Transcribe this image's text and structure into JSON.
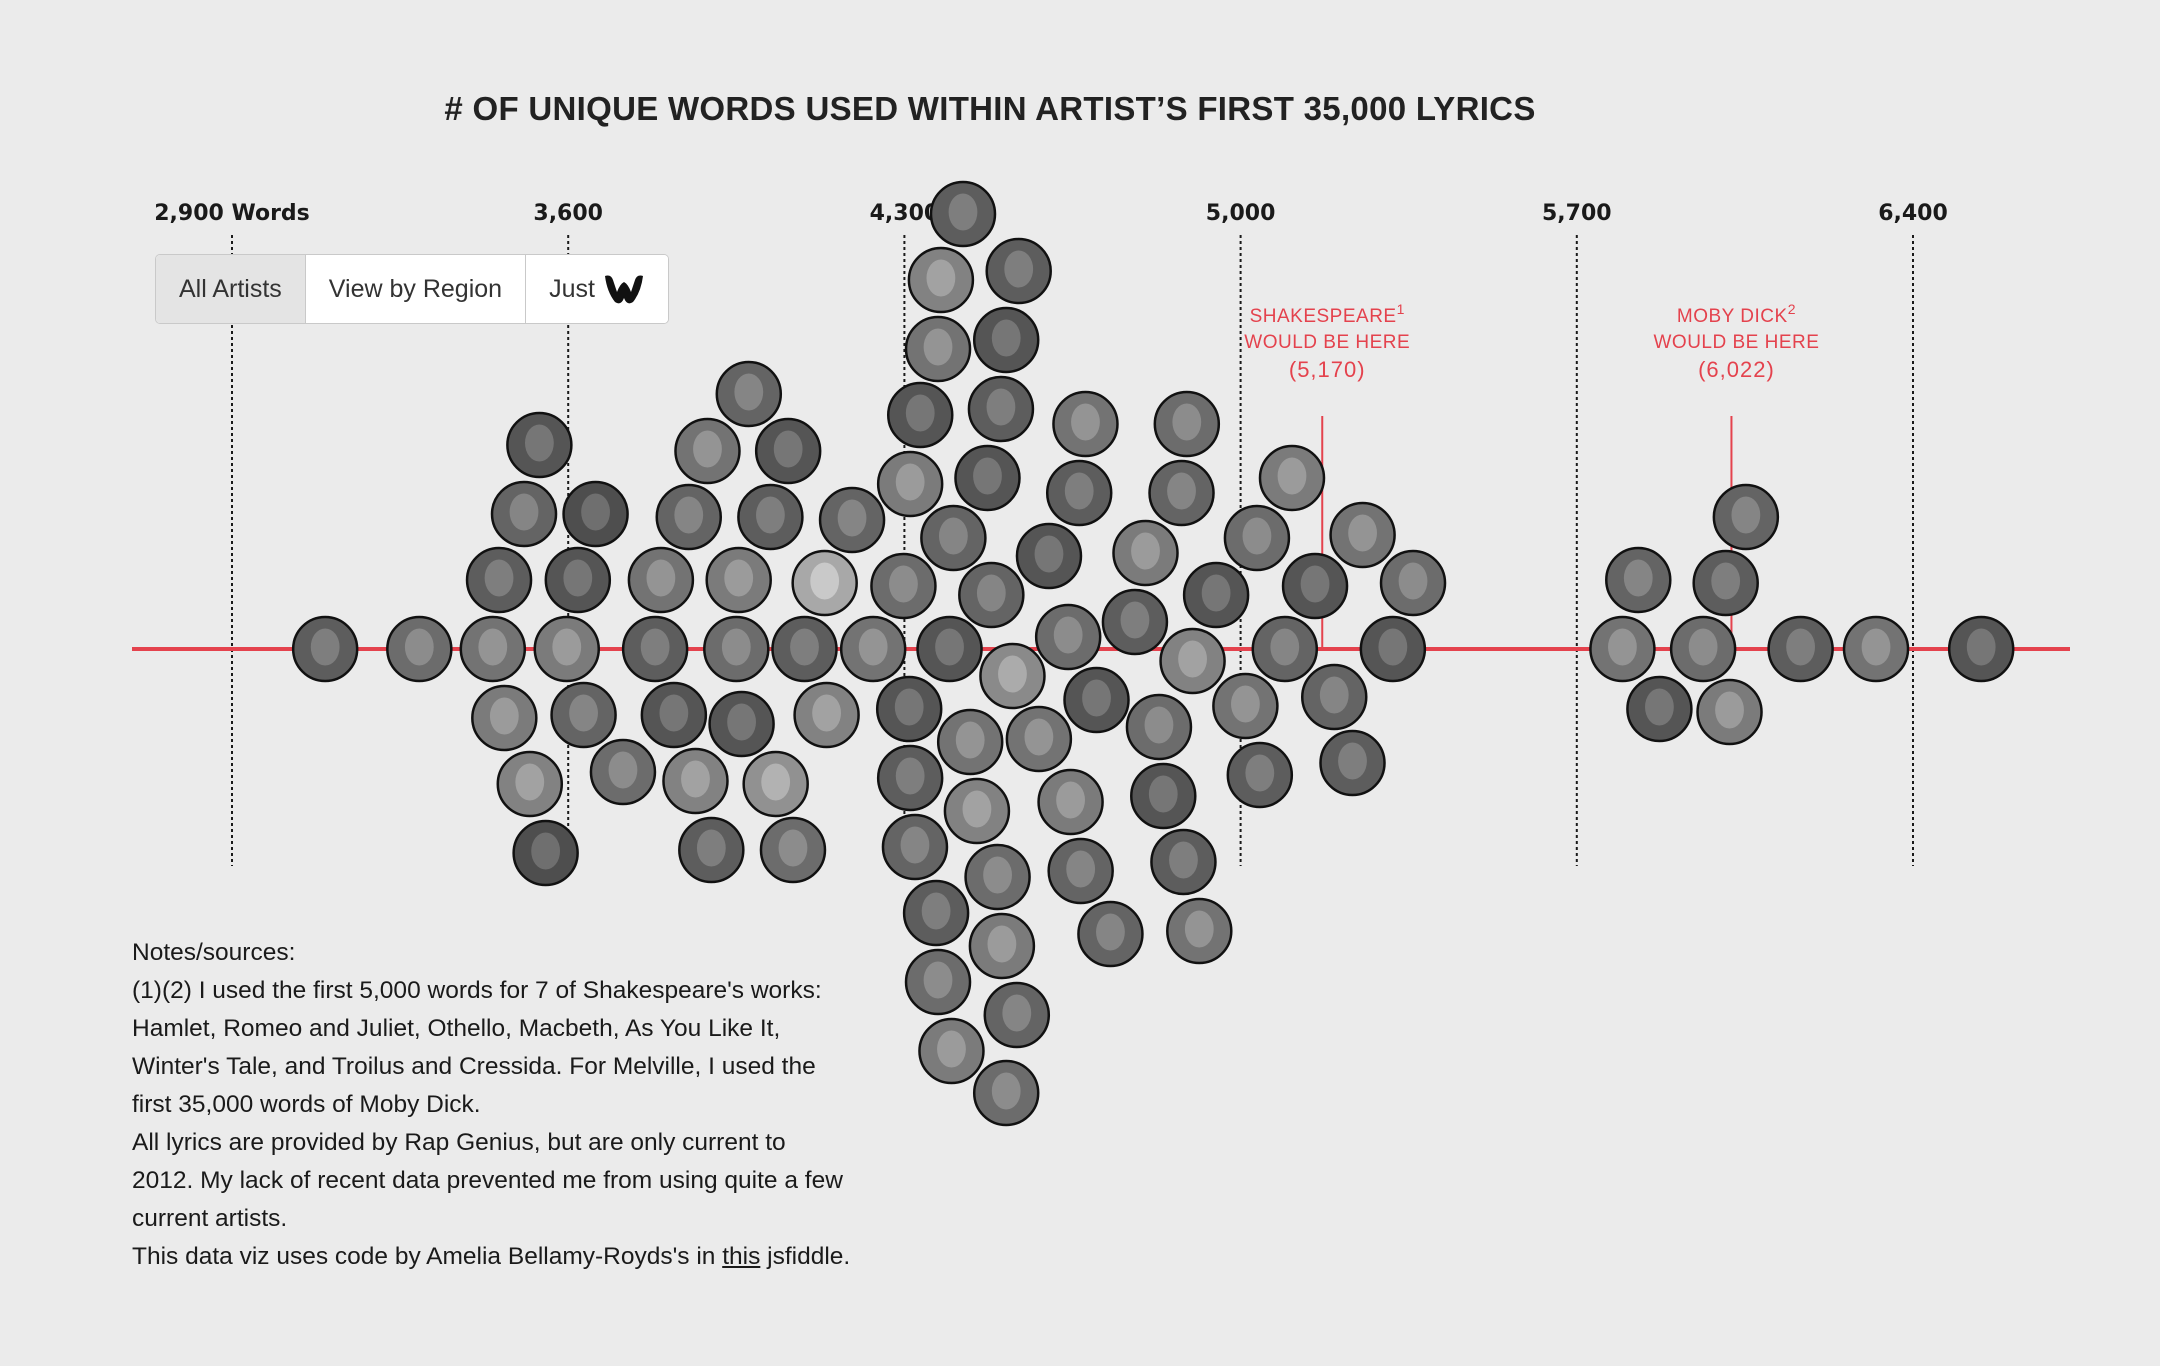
{
  "title": "# OF UNIQUE WORDS USED WITHIN ARTIST’S FIRST 35,000 LYRICS",
  "filters": {
    "all_artists": "All Artists",
    "by_region": "View by Region",
    "just": "Just",
    "wu_icon": "wu-tang-logo-icon"
  },
  "chart_data": {
    "type": "scatter",
    "x_axis": {
      "ticks": [
        2900,
        3600,
        4300,
        5000,
        5700,
        6400
      ],
      "tick_labels": [
        "2,900 Words",
        "3,600",
        "4,300",
        "5,000",
        "5,700",
        "6,400"
      ],
      "range": [
        2560,
        6840
      ]
    },
    "grid": true,
    "colors": {
      "baseline": "#e4424d",
      "annotation": "#e4424d",
      "grid": "#1a1a1a"
    },
    "annotations": [
      {
        "label_top": "SHAKESPEARE",
        "sup": "1",
        "label_bottom": "WOULD BE HERE",
        "value_text": "(5,170)",
        "x": 5170
      },
      {
        "label_top": "MOBY DICK",
        "sup": "2",
        "label_bottom": "WOULD BE HERE",
        "value_text": "(6,022)",
        "x": 6022
      }
    ],
    "points": [
      {
        "x": 3094,
        "tone": 0.35
      },
      {
        "x": 3290,
        "tone": 0.45
      },
      {
        "x": 3467,
        "tone": 0.55
      },
      {
        "x": 3553,
        "tone": 0.25
      },
      {
        "x": 3508,
        "tone": 0.4
      },
      {
        "x": 3520,
        "tone": 0.6
      },
      {
        "x": 3540,
        "tone": 0.3
      },
      {
        "x": 3443,
        "tone": 0.5
      },
      {
        "x": 3456,
        "tone": 0.35
      },
      {
        "x": 3632,
        "tone": 0.4
      },
      {
        "x": 3620,
        "tone": 0.3
      },
      {
        "x": 3597,
        "tone": 0.55
      },
      {
        "x": 3657,
        "tone": 0.25
      },
      {
        "x": 3714,
        "tone": 0.45
      },
      {
        "x": 3781,
        "tone": 0.35
      },
      {
        "x": 3793,
        "tone": 0.5
      },
      {
        "x": 3820,
        "tone": 0.3
      },
      {
        "x": 3851,
        "tone": 0.4
      },
      {
        "x": 3865,
        "tone": 0.6
      },
      {
        "x": 3898,
        "tone": 0.35
      },
      {
        "x": 3890,
        "tone": 0.5
      },
      {
        "x": 3961,
        "tone": 0.3
      },
      {
        "x": 3950,
        "tone": 0.45
      },
      {
        "x": 3955,
        "tone": 0.55
      },
      {
        "x": 3976,
        "tone": 0.4
      },
      {
        "x": 4021,
        "tone": 0.35
      },
      {
        "x": 4032,
        "tone": 0.7
      },
      {
        "x": 4058,
        "tone": 0.3
      },
      {
        "x": 4068,
        "tone": 0.45
      },
      {
        "x": 4092,
        "tone": 0.35
      },
      {
        "x": 4138,
        "tone": 0.6
      },
      {
        "x": 4134,
        "tone": 0.85
      },
      {
        "x": 4191,
        "tone": 0.4
      },
      {
        "x": 4235,
        "tone": 0.5
      },
      {
        "x": 4310,
        "tone": 0.3
      },
      {
        "x": 4298,
        "tone": 0.45
      },
      {
        "x": 4312,
        "tone": 0.35
      },
      {
        "x": 4312,
        "tone": 0.55
      },
      {
        "x": 4322,
        "tone": 0.4
      },
      {
        "x": 4333,
        "tone": 0.3
      },
      {
        "x": 4370,
        "tone": 0.5
      },
      {
        "x": 4376,
        "tone": 0.6
      },
      {
        "x": 4366,
        "tone": 0.35
      },
      {
        "x": 4370,
        "tone": 0.45
      },
      {
        "x": 4394,
        "tone": 0.3
      },
      {
        "x": 4398,
        "tone": 0.55
      },
      {
        "x": 4402,
        "tone": 0.4
      },
      {
        "x": 4422,
        "tone": 0.35
      },
      {
        "x": 4437,
        "tone": 0.5
      },
      {
        "x": 4451,
        "tone": 0.6
      },
      {
        "x": 4473,
        "tone": 0.3
      },
      {
        "x": 4481,
        "tone": 0.4
      },
      {
        "x": 4494,
        "tone": 0.45
      },
      {
        "x": 4501,
        "tone": 0.35
      },
      {
        "x": 4503,
        "tone": 0.55
      },
      {
        "x": 4512,
        "tone": 0.3
      },
      {
        "x": 4512,
        "tone": 0.45
      },
      {
        "x": 4534,
        "tone": 0.4
      },
      {
        "x": 4525,
        "tone": 0.65
      },
      {
        "x": 4538,
        "tone": 0.35
      },
      {
        "x": 4580,
        "tone": 0.5
      },
      {
        "x": 4601,
        "tone": 0.3
      },
      {
        "x": 4641,
        "tone": 0.45
      },
      {
        "x": 4646,
        "tone": 0.55
      },
      {
        "x": 4667,
        "tone": 0.4
      },
      {
        "x": 4664,
        "tone": 0.35
      },
      {
        "x": 4677,
        "tone": 0.5
      },
      {
        "x": 4700,
        "tone": 0.3
      },
      {
        "x": 4729,
        "tone": 0.4
      },
      {
        "x": 4780,
        "tone": 0.35
      },
      {
        "x": 4802,
        "tone": 0.55
      },
      {
        "x": 4830,
        "tone": 0.45
      },
      {
        "x": 4839,
        "tone": 0.3
      },
      {
        "x": 4914,
        "tone": 0.5
      },
      {
        "x": 4881,
        "tone": 0.35
      },
      {
        "x": 4888,
        "tone": 0.45
      },
      {
        "x": 4877,
        "tone": 0.4
      },
      {
        "x": 4900,
        "tone": 0.6
      },
      {
        "x": 4949,
        "tone": 0.3
      },
      {
        "x": 5010,
        "tone": 0.5
      },
      {
        "x": 5034,
        "tone": 0.45
      },
      {
        "x": 5040,
        "tone": 0.35
      },
      {
        "x": 5092,
        "tone": 0.4
      },
      {
        "x": 5107,
        "tone": 0.55
      },
      {
        "x": 5155,
        "tone": 0.3
      },
      {
        "x": 5195,
        "tone": 0.4
      },
      {
        "x": 5233,
        "tone": 0.35
      },
      {
        "x": 5254,
        "tone": 0.5
      },
      {
        "x": 5359,
        "tone": 0.45
      },
      {
        "x": 5317,
        "tone": 0.3
      },
      {
        "x": 5828,
        "tone": 0.4
      },
      {
        "x": 5795,
        "tone": 0.5
      },
      {
        "x": 5872,
        "tone": 0.3
      },
      {
        "x": 5963,
        "tone": 0.45
      },
      {
        "x": 6010,
        "tone": 0.35
      },
      {
        "x": 6018,
        "tone": 0.55
      },
      {
        "x": 6052,
        "tone": 0.4
      },
      {
        "x": 6166,
        "tone": 0.35
      },
      {
        "x": 6323,
        "tone": 0.5
      },
      {
        "x": 6542,
        "tone": 0.3
      }
    ]
  },
  "notes": {
    "heading": "Notes/sources:",
    "p1": "(1)(2) I used the first 5,000 words for 7 of Shakespeare's works: Hamlet, Romeo and Juliet, Othello, Macbeth, As You Like It, Winter's Tale, and Troilus and Cressida. For Melville, I used the first 35,000 words of Moby Dick.",
    "p2": "All lyrics are provided by Rap Genius, but are only current to 2012. My lack of recent data prevented me from using quite a few current artists.",
    "p3_pre": "This data viz uses code by Amelia Bellamy-Royds's in ",
    "p3_link": "this",
    "p3_post": " jsfiddle."
  }
}
